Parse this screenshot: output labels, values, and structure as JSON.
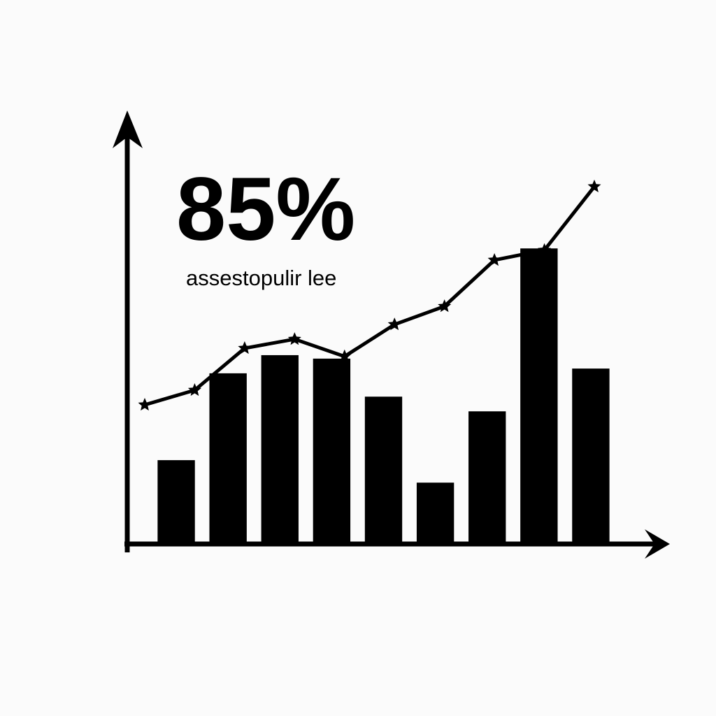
{
  "chart_data": [
    {
      "type": "bar",
      "annotations": [
        "85%",
        "assestopulir lee"
      ],
      "values": [
        19.4,
        39.5,
        43.7,
        42.9,
        34.1,
        14.2,
        30.7,
        68.4,
        40.6
      ],
      "color": "#000000",
      "ylim": [
        0,
        100
      ]
    },
    {
      "type": "line",
      "values": [
        32.2,
        35.6,
        45.3,
        47.4,
        43.4,
        50.8,
        55.0,
        65.7,
        68.0,
        82.7
      ],
      "color": "#000000",
      "ylim": [
        0,
        100
      ]
    }
  ]
}
